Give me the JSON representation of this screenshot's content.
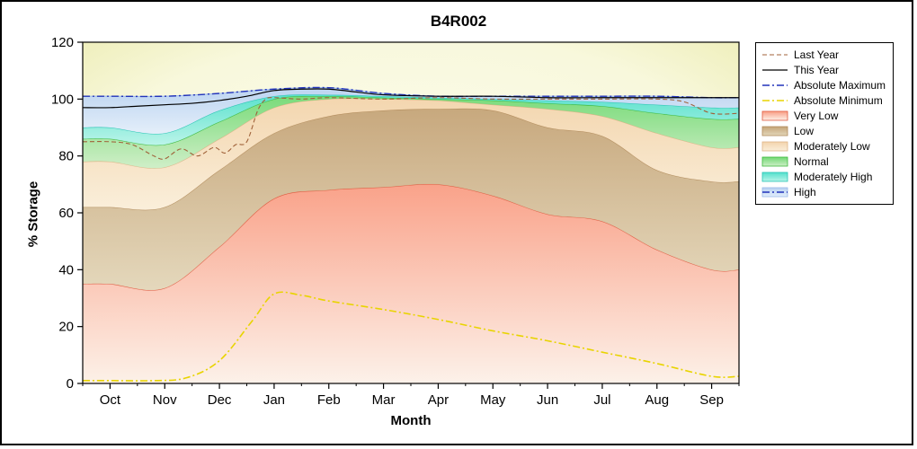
{
  "window": {
    "title": "B4R002"
  },
  "chart_data": {
    "type": "area",
    "title": "B4R002",
    "xlabel": "Month",
    "ylabel": "% Storage",
    "ylim": [
      0,
      120
    ],
    "y_ticks": [
      0,
      20,
      40,
      60,
      80,
      100,
      120
    ],
    "x_categories": [
      "Oct",
      "Nov",
      "Dec",
      "Jan",
      "Feb",
      "Mar",
      "Apr",
      "May",
      "Jun",
      "Jul",
      "Aug",
      "Sep"
    ],
    "grid": false,
    "legend_position": "right-outside",
    "background": {
      "center": "#fdfdf0",
      "mid": "#f8f8dc",
      "edge": "#ededb5"
    },
    "bands": [
      {
        "name": "Very Low",
        "upper": [
          35,
          33.5,
          48,
          65,
          68,
          69,
          70,
          66,
          59.5,
          57,
          47,
          40
        ],
        "fill_top": "#f99d84",
        "fill_bottom": "#fdf1ea",
        "edge": "#e05a40"
      },
      {
        "name": "Low",
        "upper": [
          62,
          62,
          75,
          88,
          94,
          96,
          96.5,
          96,
          90,
          87,
          75,
          71
        ],
        "fill_top": "#c5a478",
        "fill_bottom": "#e3d6ba",
        "edge": "#b08a5a"
      },
      {
        "name": "Moderately Low",
        "upper": [
          78,
          76,
          86,
          97,
          100,
          100,
          99.5,
          98,
          96.5,
          94,
          88,
          83
        ],
        "fill_top": "#f3d4ac",
        "fill_bottom": "#faeeda",
        "edge": "#dfb488"
      },
      {
        "name": "Normal",
        "upper": [
          86,
          84,
          92,
          100,
          101,
          100.5,
          100,
          99.5,
          98.5,
          97.5,
          95,
          93
        ],
        "fill_top": "#72d974",
        "fill_bottom": "#cdeec6",
        "edge": "#3cb83c"
      },
      {
        "name": "Moderately High",
        "upper": [
          90,
          88,
          96,
          101,
          101.5,
          101,
          100.5,
          100,
          99.5,
          99,
          98,
          97
        ],
        "fill_top": "#52e0cc",
        "fill_bottom": "#b8f4ea",
        "edge": "#28c4b4"
      },
      {
        "name": "High",
        "upper": [
          101,
          101,
          102,
          103.5,
          104,
          102,
          101,
          101,
          101,
          101,
          101,
          100.5
        ],
        "fill_top": "#b9d2f2",
        "fill_bottom": "#e3eefb",
        "edge": "#9ab8e8"
      }
    ],
    "lines": [
      {
        "name": "Absolute Minimum",
        "color": "#e8d400",
        "style": "dashdot",
        "width": 1.6,
        "x": [
          0,
          0.8,
          1.4,
          2,
          2.6,
          3,
          3.5,
          4,
          5,
          6,
          7,
          8,
          9,
          10,
          11
        ],
        "y": [
          1,
          1,
          2,
          8,
          22,
          31.5,
          31,
          29,
          26,
          22.5,
          18.5,
          15,
          11,
          7,
          2.5
        ]
      },
      {
        "name": "Last Year",
        "color": "#a0623a",
        "style": "dashed",
        "width": 1.1,
        "x": [
          0,
          0.4,
          0.8,
          1,
          1.3,
          1.6,
          1.9,
          2.1,
          2.3,
          2.5,
          2.7,
          2.85,
          3,
          3.5,
          4,
          5,
          6,
          7,
          8,
          9,
          10,
          10.5,
          11
        ],
        "y": [
          85,
          84,
          80,
          79,
          82.5,
          80,
          83,
          81,
          84,
          85,
          96,
          100,
          100.5,
          100,
          100.5,
          100,
          100.5,
          100,
          100,
          100,
          100,
          99,
          95
        ]
      },
      {
        "name": "Absolute Maximum",
        "color": "#2233bb",
        "style": "dashdot",
        "width": 1.4,
        "x": [
          0,
          1,
          2,
          3,
          4,
          5,
          6,
          7,
          8,
          9,
          10,
          11
        ],
        "y": [
          101,
          101,
          102,
          103.5,
          104,
          102,
          101,
          101,
          101,
          101,
          101,
          100.5
        ]
      },
      {
        "name": "This Year",
        "color": "#000000",
        "style": "solid",
        "width": 1.2,
        "x": [
          0,
          0.5,
          1,
          1.5,
          2,
          2.5,
          3,
          3.5,
          4,
          4.5,
          5,
          6,
          7,
          8,
          9,
          10,
          11
        ],
        "y": [
          97,
          97.5,
          98,
          98.5,
          99.5,
          101,
          103,
          103.5,
          103.5,
          102.5,
          101.5,
          101,
          101,
          100.5,
          100.5,
          100.5,
          100.5
        ]
      }
    ],
    "legend": {
      "entries": [
        {
          "label": "Last Year",
          "type": "line",
          "ref": "Last Year"
        },
        {
          "label": "This Year",
          "type": "line",
          "ref": "This Year"
        },
        {
          "label": "Absolute Maximum",
          "type": "line",
          "ref": "Absolute Maximum"
        },
        {
          "label": "Absolute Minimum",
          "type": "line",
          "ref": "Absolute Minimum"
        },
        {
          "label": "Very Low",
          "type": "box",
          "ref": "Very Low"
        },
        {
          "label": "Low",
          "type": "box",
          "ref": "Low"
        },
        {
          "label": "Moderately Low",
          "type": "box",
          "ref": "Moderately Low"
        },
        {
          "label": "Normal",
          "type": "box",
          "ref": "Normal"
        },
        {
          "label": "Moderately High",
          "type": "box",
          "ref": "Moderately High"
        },
        {
          "label": "High",
          "type": "box-line",
          "ref": "High",
          "line_ref": "Absolute Maximum"
        }
      ]
    }
  }
}
